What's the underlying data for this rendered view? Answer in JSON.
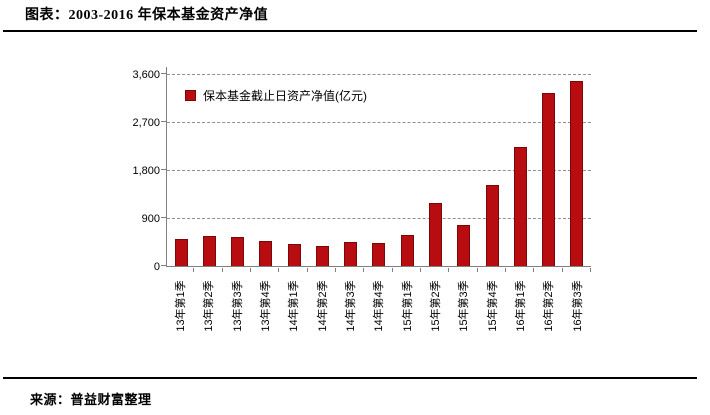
{
  "page": {
    "title": "图表：2003-2016 年保本基金资产净值",
    "source": "来源：普益财富整理"
  },
  "chart_data": {
    "type": "bar",
    "title": "图表：2003-2016 年保本基金资产净值",
    "legend": [
      "保本基金截止日资产净值(亿元)"
    ],
    "legend_position": "inside-top-left",
    "categories": [
      "13年第1季",
      "13年第2季",
      "13年第3季",
      "13年第4季",
      "14年第1季",
      "14年第2季",
      "14年第3季",
      "14年第4季",
      "15年第1季",
      "15年第2季",
      "15年第3季",
      "15年第4季",
      "16年第1季",
      "16年第2季",
      "16年第3季"
    ],
    "values": [
      510,
      560,
      535,
      475,
      415,
      375,
      450,
      425,
      585,
      1190,
      775,
      1510,
      2235,
      3250,
      3475
    ],
    "unit": "亿元",
    "ylim": [
      0,
      3600
    ],
    "yticks": [
      0,
      900,
      1800,
      2700,
      3600
    ],
    "ytick_labels": [
      "0",
      "900",
      "1,800",
      "2,700",
      "3,600"
    ],
    "xlabel": "",
    "ylabel": "",
    "grid": "horizontal-dashed",
    "bar_color": "#B80D10",
    "bar_border_color": "#7D0608",
    "gridline_color": "#909090",
    "axis_color": "#808080"
  }
}
